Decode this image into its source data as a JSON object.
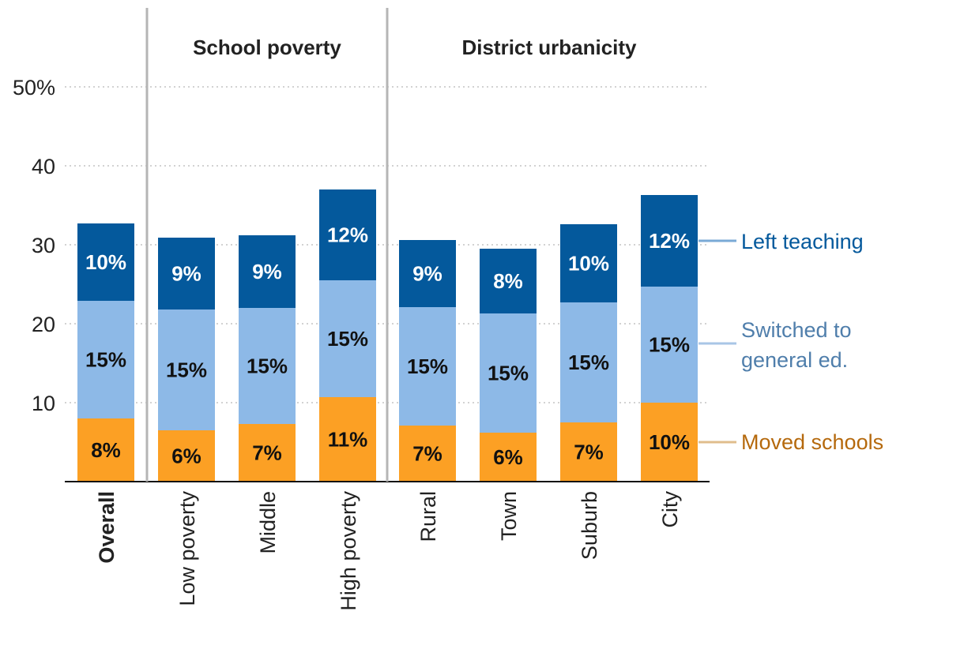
{
  "chart_data": {
    "type": "bar",
    "stacked": true,
    "categories": [
      "Overall",
      "Low poverty",
      "Middle",
      "High poverty",
      "Rural",
      "Town",
      "Suburb",
      "City"
    ],
    "groups": [
      {
        "title": "School poverty",
        "categories": [
          "Low poverty",
          "Middle",
          "High poverty"
        ]
      },
      {
        "title": "District urbanicity",
        "categories": [
          "Rural",
          "Town",
          "Suburb",
          "City"
        ]
      }
    ],
    "series": [
      {
        "name": "Moved schools",
        "color": "#fca024",
        "legend_color": "#b5690d",
        "values": [
          8.0,
          6.5,
          7.3,
          10.7,
          7.1,
          6.2,
          7.5,
          10.0
        ],
        "labels": [
          "8%",
          "6%",
          "7%",
          "11%",
          "7%",
          "6%",
          "7%",
          "10%"
        ]
      },
      {
        "name": "Switched to general ed.",
        "color": "#8db9e7",
        "legend_color": "#4f7eab",
        "values": [
          14.9,
          15.3,
          14.7,
          14.8,
          15.0,
          15.1,
          15.2,
          14.7
        ],
        "labels": [
          "15%",
          "15%",
          "15%",
          "15%",
          "15%",
          "15%",
          "15%",
          "15%"
        ]
      },
      {
        "name": "Left teaching",
        "color": "#04599c",
        "legend_color": "#04599c",
        "values": [
          9.8,
          9.1,
          9.2,
          11.5,
          8.5,
          8.2,
          9.9,
          11.6
        ],
        "labels": [
          "10%",
          "9%",
          "9%",
          "12%",
          "9%",
          "8%",
          "10%",
          "12%"
        ]
      }
    ],
    "legend_labels": {
      "left": "Left teaching",
      "switched_line1": "Switched to",
      "switched_line2": "general ed.",
      "moved": "Moved schools"
    },
    "yticks": [
      {
        "value": 10,
        "label": "10"
      },
      {
        "value": 20,
        "label": "20"
      },
      {
        "value": 30,
        "label": "30"
      },
      {
        "value": 40,
        "label": "40"
      },
      {
        "value": 50,
        "label": "50%"
      }
    ],
    "ylim": [
      0,
      50
    ],
    "grid": true,
    "title": "",
    "xlabel": "",
    "ylabel": ""
  }
}
